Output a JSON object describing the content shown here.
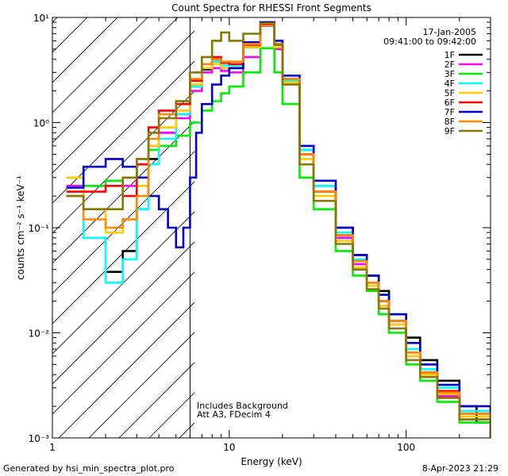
{
  "chart_data": {
    "type": "line",
    "title": "Count Spectra for RHESSI Front Segments",
    "xlabel": "Energy (keV)",
    "ylabel": "counts cm⁻² s⁻¹ keV⁻¹",
    "xscale": "log",
    "yscale": "log",
    "xlim": [
      1,
      300
    ],
    "ylim": [
      0.001,
      10
    ],
    "x_ticks": [
      {
        "value": 1,
        "label": "1"
      },
      {
        "value": 10,
        "label": "10"
      },
      {
        "value": 100,
        "label": "100"
      }
    ],
    "y_ticks": [
      {
        "value": 10,
        "label": "10¹"
      },
      {
        "value": 1,
        "label": "10⁰"
      },
      {
        "value": 0.1,
        "label": "10⁻¹"
      },
      {
        "value": 0.01,
        "label": "10⁻²"
      },
      {
        "value": 0.001,
        "label": "10⁻³"
      }
    ],
    "date": "17-Jan-2005",
    "time_range": "09:41:00 to 09:42:00",
    "shaded_region_xmax": 6,
    "annotations": [
      "Includes Background",
      "Att A3, FDecim 4"
    ],
    "footer_left": "Generated by hsi_min_spectra_plot.pro",
    "footer_right": "8-Apr-2023 21:29",
    "series": [
      {
        "name": "1F",
        "color": "#000000",
        "points": [
          [
            2,
            0.038
          ],
          [
            2.5,
            0.06
          ],
          [
            3,
            0.15
          ],
          [
            3.5,
            0.45
          ],
          [
            4,
            0.8
          ],
          [
            5,
            1.2
          ],
          [
            6,
            2.2
          ],
          [
            7,
            3.2
          ],
          [
            8,
            3.8
          ],
          [
            9,
            3.3
          ],
          [
            10,
            3.3
          ],
          [
            12,
            5.2
          ],
          [
            15,
            8.8
          ],
          [
            18,
            5.5
          ],
          [
            20,
            2.5
          ],
          [
            25,
            0.55
          ],
          [
            30,
            0.25
          ],
          [
            40,
            0.1
          ],
          [
            50,
            0.055
          ],
          [
            60,
            0.035
          ],
          [
            70,
            0.025
          ],
          [
            80,
            0.015
          ],
          [
            100,
            0.009
          ],
          [
            120,
            0.0055
          ],
          [
            150,
            0.0035
          ],
          [
            200,
            0.002
          ],
          [
            250,
            0.0014
          ],
          [
            300,
            0.0011
          ]
        ]
      },
      {
        "name": "2F",
        "color": "#ff00ff",
        "points": [
          [
            1.2,
            0.25
          ],
          [
            1.5,
            0.25
          ],
          [
            2,
            0.28
          ],
          [
            2.5,
            0.25
          ],
          [
            3,
            0.4
          ],
          [
            3.5,
            0.6
          ],
          [
            4,
            0.8
          ],
          [
            5,
            1.1
          ],
          [
            6,
            2.0
          ],
          [
            7,
            3.0
          ],
          [
            8,
            3.3
          ],
          [
            9,
            3.1
          ],
          [
            10,
            3.0
          ],
          [
            12,
            4.2
          ],
          [
            15,
            8.3
          ],
          [
            18,
            5.0
          ],
          [
            20,
            2.4
          ],
          [
            25,
            0.5
          ],
          [
            30,
            0.22
          ],
          [
            40,
            0.08
          ],
          [
            50,
            0.045
          ],
          [
            60,
            0.03
          ],
          [
            70,
            0.018
          ],
          [
            80,
            0.012
          ],
          [
            100,
            0.006
          ],
          [
            120,
            0.004
          ],
          [
            150,
            0.0025
          ],
          [
            200,
            0.0015
          ],
          [
            300,
            0.001
          ]
        ]
      },
      {
        "name": "3F",
        "color": "#00ee00",
        "points": [
          [
            1.2,
            0.3
          ],
          [
            1.5,
            0.25
          ],
          [
            2,
            0.28
          ],
          [
            2.5,
            0.3
          ],
          [
            3,
            0.45
          ],
          [
            3.5,
            0.55
          ],
          [
            4,
            0.6
          ],
          [
            5,
            0.75
          ],
          [
            6,
            1.0
          ],
          [
            7,
            1.3
          ],
          [
            8,
            1.6
          ],
          [
            9,
            1.9
          ],
          [
            10,
            2.2
          ],
          [
            12,
            3.0
          ],
          [
            15,
            5.1
          ],
          [
            18,
            3.0
          ],
          [
            20,
            1.5
          ],
          [
            25,
            0.3
          ],
          [
            30,
            0.15
          ],
          [
            40,
            0.06
          ],
          [
            50,
            0.035
          ],
          [
            60,
            0.025
          ],
          [
            70,
            0.015
          ],
          [
            80,
            0.01
          ],
          [
            100,
            0.005
          ],
          [
            120,
            0.0035
          ],
          [
            150,
            0.0022
          ],
          [
            200,
            0.0014
          ],
          [
            300,
            0.001
          ]
        ]
      },
      {
        "name": "4F",
        "color": "#00ffff",
        "points": [
          [
            1.2,
            0.3
          ],
          [
            1.5,
            0.08
          ],
          [
            2,
            0.03
          ],
          [
            2.5,
            0.05
          ],
          [
            3,
            0.15
          ],
          [
            3.5,
            0.4
          ],
          [
            4,
            0.7
          ],
          [
            5,
            1.2
          ],
          [
            6,
            2.2
          ],
          [
            7,
            3.3
          ],
          [
            8,
            3.8
          ],
          [
            9,
            3.5
          ],
          [
            10,
            3.5
          ],
          [
            12,
            5.5
          ],
          [
            15,
            8.5
          ],
          [
            18,
            5.5
          ],
          [
            20,
            2.5
          ],
          [
            25,
            0.55
          ],
          [
            30,
            0.25
          ],
          [
            40,
            0.09
          ],
          [
            50,
            0.05
          ],
          [
            60,
            0.03
          ],
          [
            70,
            0.02
          ],
          [
            80,
            0.013
          ],
          [
            100,
            0.007
          ],
          [
            120,
            0.0045
          ],
          [
            150,
            0.003
          ],
          [
            200,
            0.0018
          ],
          [
            300,
            0.0012
          ]
        ]
      },
      {
        "name": "5F",
        "color": "#ffcc00",
        "points": [
          [
            1.2,
            0.3
          ],
          [
            1.5,
            0.15
          ],
          [
            2,
            0.09
          ],
          [
            2.5,
            0.12
          ],
          [
            3,
            0.25
          ],
          [
            3.5,
            0.6
          ],
          [
            4,
            0.9
          ],
          [
            5,
            1.3
          ],
          [
            6,
            2.3
          ],
          [
            7,
            3.3
          ],
          [
            8,
            3.6
          ],
          [
            9,
            3.3
          ],
          [
            10,
            3.3
          ],
          [
            12,
            5.2
          ],
          [
            15,
            8.4
          ],
          [
            18,
            5.2
          ],
          [
            20,
            2.4
          ],
          [
            25,
            0.45
          ],
          [
            30,
            0.2
          ],
          [
            40,
            0.075
          ],
          [
            50,
            0.042
          ],
          [
            60,
            0.028
          ],
          [
            70,
            0.018
          ],
          [
            80,
            0.012
          ],
          [
            100,
            0.006
          ],
          [
            120,
            0.004
          ],
          [
            150,
            0.0026
          ],
          [
            200,
            0.0016
          ],
          [
            300,
            0.0011
          ]
        ]
      },
      {
        "name": "6F",
        "color": "#ff0000",
        "points": [
          [
            1.2,
            0.22
          ],
          [
            1.5,
            0.22
          ],
          [
            2,
            0.25
          ],
          [
            2.5,
            0.2
          ],
          [
            3,
            0.4
          ],
          [
            3.5,
            0.9
          ],
          [
            4,
            1.3
          ],
          [
            5,
            1.5
          ],
          [
            6,
            2.5
          ],
          [
            7,
            3.6
          ],
          [
            8,
            4.2
          ],
          [
            9,
            3.7
          ],
          [
            10,
            3.6
          ],
          [
            12,
            5.5
          ],
          [
            15,
            8.6
          ],
          [
            18,
            5.6
          ],
          [
            20,
            2.6
          ],
          [
            25,
            0.5
          ],
          [
            30,
            0.22
          ],
          [
            40,
            0.085
          ],
          [
            50,
            0.048
          ],
          [
            60,
            0.03
          ],
          [
            70,
            0.02
          ],
          [
            80,
            0.013
          ],
          [
            100,
            0.0065
          ],
          [
            120,
            0.0042
          ],
          [
            150,
            0.0028
          ],
          [
            200,
            0.0017
          ],
          [
            300,
            0.0011
          ]
        ]
      },
      {
        "name": "7F",
        "color": "#0000cc",
        "points": [
          [
            1.2,
            0.24
          ],
          [
            1.5,
            0.38
          ],
          [
            2,
            0.45
          ],
          [
            2.5,
            0.38
          ],
          [
            3,
            0.3
          ],
          [
            3.5,
            0.2
          ],
          [
            4,
            0.15
          ],
          [
            4.5,
            0.1
          ],
          [
            5,
            0.065
          ],
          [
            5.5,
            0.1
          ],
          [
            6,
            0.3
          ],
          [
            6.5,
            0.8
          ],
          [
            7,
            1.5
          ],
          [
            8,
            2.3
          ],
          [
            9,
            2.8
          ],
          [
            10,
            3.3
          ],
          [
            12,
            5.8
          ],
          [
            15,
            9.0
          ],
          [
            18,
            6.0
          ],
          [
            20,
            2.8
          ],
          [
            25,
            0.6
          ],
          [
            30,
            0.28
          ],
          [
            40,
            0.1
          ],
          [
            50,
            0.055
          ],
          [
            60,
            0.035
          ],
          [
            70,
            0.023
          ],
          [
            80,
            0.015
          ],
          [
            100,
            0.008
          ],
          [
            120,
            0.005
          ],
          [
            150,
            0.0032
          ],
          [
            200,
            0.002
          ],
          [
            300,
            0.0012
          ]
        ]
      },
      {
        "name": "8F",
        "color": "#ff8800",
        "points": [
          [
            1.2,
            0.2
          ],
          [
            1.5,
            0.12
          ],
          [
            2,
            0.1
          ],
          [
            2.5,
            0.12
          ],
          [
            3,
            0.2
          ],
          [
            3.5,
            0.7
          ],
          [
            4,
            1.2
          ],
          [
            5,
            1.6
          ],
          [
            6,
            2.6
          ],
          [
            7,
            3.6
          ],
          [
            8,
            4.0
          ],
          [
            9,
            3.8
          ],
          [
            10,
            3.8
          ],
          [
            12,
            5.6
          ],
          [
            15,
            8.7
          ],
          [
            18,
            5.6
          ],
          [
            20,
            2.6
          ],
          [
            25,
            0.5
          ],
          [
            30,
            0.22
          ],
          [
            40,
            0.085
          ],
          [
            50,
            0.048
          ],
          [
            60,
            0.03
          ],
          [
            70,
            0.02
          ],
          [
            80,
            0.013
          ],
          [
            100,
            0.0065
          ],
          [
            120,
            0.0042
          ],
          [
            150,
            0.0027
          ],
          [
            200,
            0.0017
          ],
          [
            300,
            0.0011
          ]
        ]
      },
      {
        "name": "9F",
        "color": "#887700",
        "points": [
          [
            1.2,
            0.2
          ],
          [
            1.5,
            0.15
          ],
          [
            2,
            0.15
          ],
          [
            2.5,
            0.3
          ],
          [
            3,
            0.45
          ],
          [
            3.5,
            0.8
          ],
          [
            4,
            1.1
          ],
          [
            5,
            1.6
          ],
          [
            6,
            3.0
          ],
          [
            7,
            4.2
          ],
          [
            8,
            6.0
          ],
          [
            9,
            7.2
          ],
          [
            10,
            6.0
          ],
          [
            12,
            7.0
          ],
          [
            15,
            8.8
          ],
          [
            18,
            5.5
          ],
          [
            20,
            2.3
          ],
          [
            25,
            0.4
          ],
          [
            30,
            0.18
          ],
          [
            40,
            0.07
          ],
          [
            50,
            0.04
          ],
          [
            60,
            0.026
          ],
          [
            70,
            0.017
          ],
          [
            80,
            0.011
          ],
          [
            100,
            0.0055
          ],
          [
            120,
            0.0038
          ],
          [
            150,
            0.0024
          ],
          [
            200,
            0.0015
          ],
          [
            300,
            0.001
          ]
        ]
      }
    ]
  }
}
